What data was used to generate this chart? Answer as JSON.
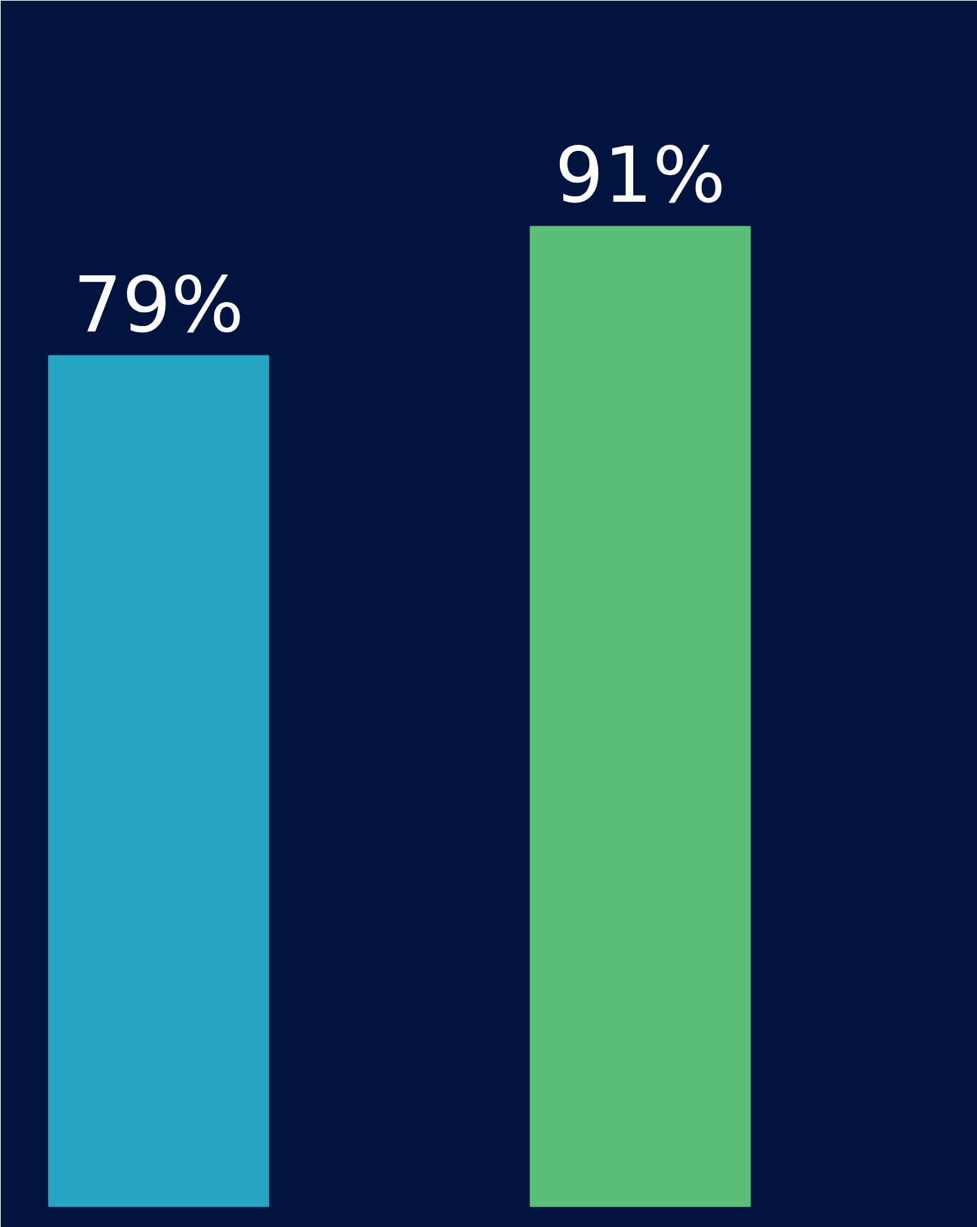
{
  "chart_data": {
    "type": "bar",
    "categories": [
      null,
      null
    ],
    "series": [
      {
        "colors": [
          "#27a5c4",
          "#5cbf78"
        ],
        "values": [
          79,
          91
        ],
        "value_labels": [
          "79%",
          "91%"
        ]
      }
    ]
  }
}
